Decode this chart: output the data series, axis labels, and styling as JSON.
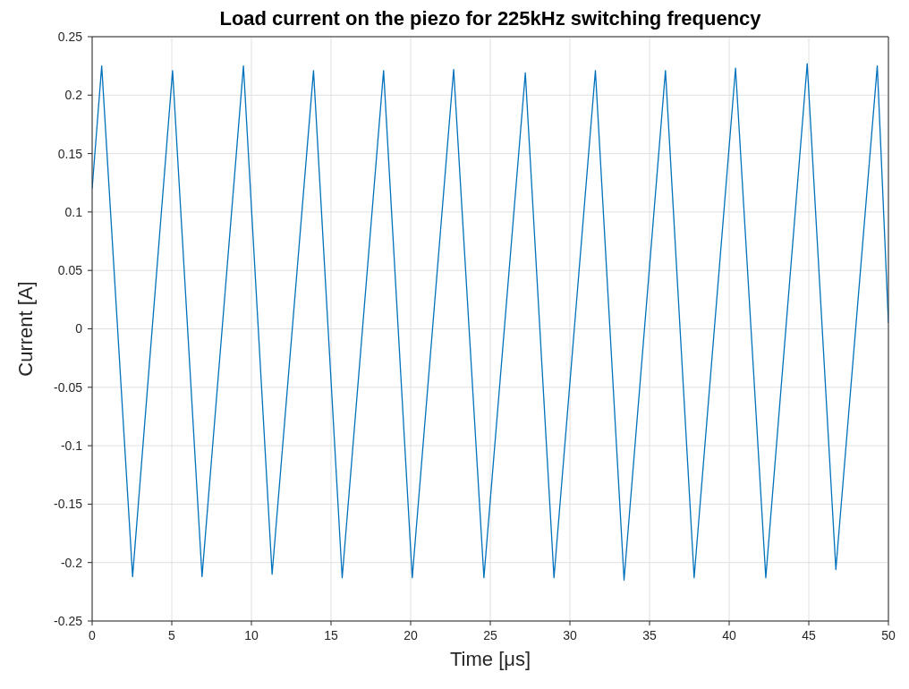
{
  "chart_data": {
    "type": "line",
    "title": "Load current on the piezo for 225kHz switching frequency",
    "xlabel": "Time [μs]",
    "ylabel": "Current [A]",
    "x": [
      0,
      0.6,
      2.54,
      5.05,
      6.9,
      9.5,
      11.3,
      13.9,
      15.7,
      18.3,
      20.1,
      22.7,
      24.6,
      27.2,
      29.0,
      31.6,
      33.4,
      36.0,
      37.8,
      40.4,
      42.3,
      44.9,
      46.7,
      49.3,
      50
    ],
    "series": [
      {
        "color": "#0072bd",
        "values": [
          0.12,
          0.225,
          -0.212,
          0.221,
          -0.212,
          0.225,
          -0.21,
          0.221,
          -0.213,
          0.221,
          -0.213,
          0.222,
          -0.213,
          0.219,
          -0.213,
          0.221,
          -0.215,
          0.221,
          -0.213,
          0.223,
          -0.213,
          0.227,
          -0.206,
          0.225,
          0.005
        ]
      }
    ],
    "xlim": [
      0,
      50
    ],
    "xticks": [
      0,
      5,
      10,
      15,
      20,
      25,
      30,
      35,
      40,
      45,
      50
    ],
    "ylim": [
      -0.25,
      0.25
    ],
    "yticks": [
      -0.25,
      -0.2,
      -0.15,
      -0.1,
      -0.05,
      0,
      0.05,
      0.1,
      0.15,
      0.2,
      0.25
    ],
    "grid": true,
    "marker": "none",
    "line_style": "solid"
  }
}
